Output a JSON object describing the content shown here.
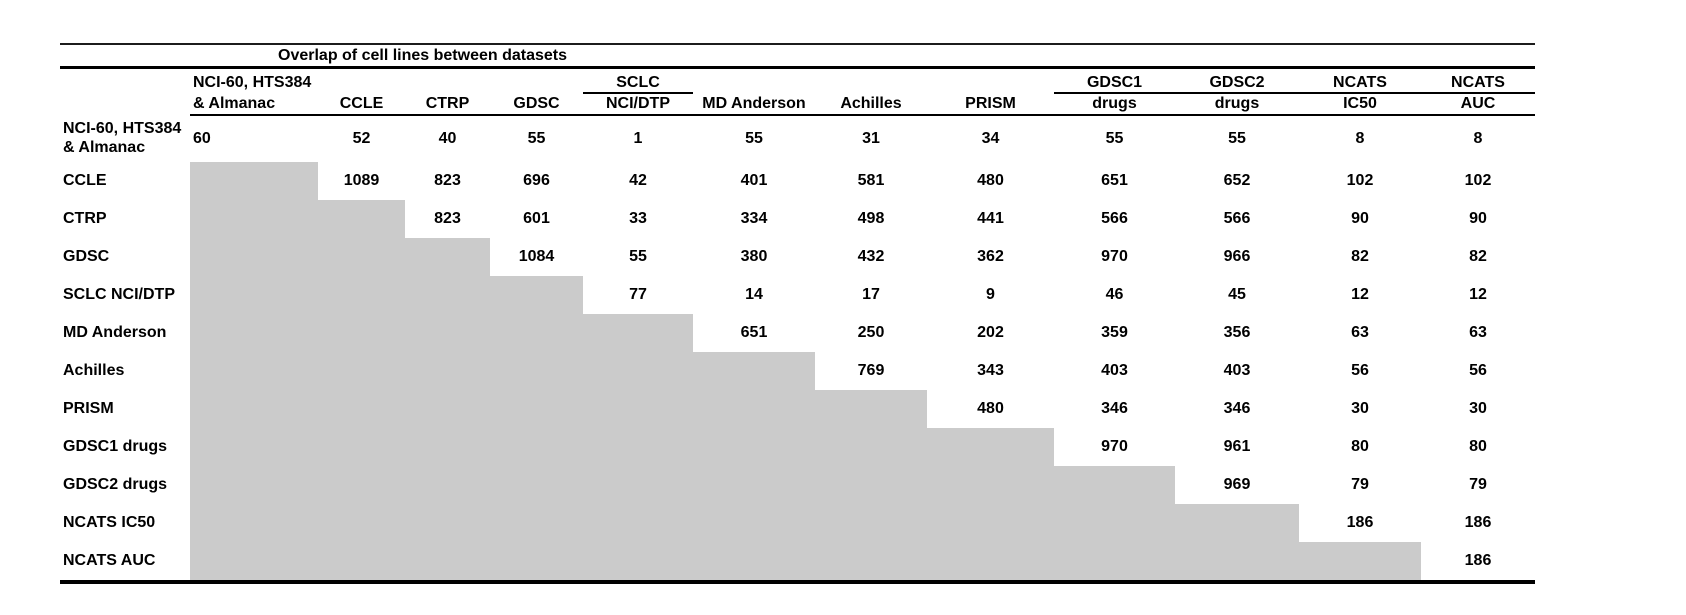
{
  "colors": {
    "background": "#ffffff",
    "shaded_cell": "#cbcbcb",
    "rule": "#000000",
    "text": "#000000"
  },
  "chart_data": {
    "type": "table",
    "title": "Overlap of cell lines between datasets",
    "description_of_shading": "strict lower-triangle cells are shaded gray with no values",
    "header_row_1": [
      "NCI-60, HTS384",
      "",
      "",
      "",
      "SCLC",
      "",
      "",
      "",
      "GDSC1",
      "GDSC2",
      "NCATS",
      "NCATS"
    ],
    "header_row_2": [
      "& Almanac",
      "CCLE",
      "CTRP",
      "GDSC",
      "NCI/DTP",
      "MD Anderson",
      "Achilles",
      "PRISM",
      "drugs",
      "drugs",
      "IC50",
      "AUC"
    ],
    "header_underline_groups": [
      [
        5,
        5
      ],
      [
        9,
        12
      ]
    ],
    "row_labels": [
      "NCI-60, HTS384 & Almanac",
      "CCLE",
      "CTRP",
      "GDSC",
      "SCLC NCI/DTP",
      "MD Anderson",
      "Achilles",
      "PRISM",
      "GDSC1 drugs",
      "GDSC2 drugs",
      "NCATS IC50",
      "NCATS AUC"
    ],
    "matrix": [
      [
        60,
        52,
        40,
        55,
        1,
        55,
        31,
        34,
        55,
        55,
        8,
        8
      ],
      [
        null,
        1089,
        823,
        696,
        42,
        401,
        581,
        480,
        651,
        652,
        102,
        102
      ],
      [
        null,
        null,
        823,
        601,
        33,
        334,
        498,
        441,
        566,
        566,
        90,
        90
      ],
      [
        null,
        null,
        null,
        1084,
        55,
        380,
        432,
        362,
        970,
        966,
        82,
        82
      ],
      [
        null,
        null,
        null,
        null,
        77,
        14,
        17,
        9,
        46,
        45,
        12,
        12
      ],
      [
        null,
        null,
        null,
        null,
        null,
        651,
        250,
        202,
        359,
        356,
        63,
        63
      ],
      [
        null,
        null,
        null,
        null,
        null,
        null,
        769,
        343,
        403,
        403,
        56,
        56
      ],
      [
        null,
        null,
        null,
        null,
        null,
        null,
        null,
        480,
        346,
        346,
        30,
        30
      ],
      [
        null,
        null,
        null,
        null,
        null,
        null,
        null,
        null,
        970,
        961,
        80,
        80
      ],
      [
        null,
        null,
        null,
        null,
        null,
        null,
        null,
        null,
        null,
        969,
        79,
        79
      ],
      [
        null,
        null,
        null,
        null,
        null,
        null,
        null,
        null,
        null,
        null,
        186,
        186
      ],
      [
        null,
        null,
        null,
        null,
        null,
        null,
        null,
        null,
        null,
        null,
        null,
        186
      ]
    ],
    "layout": {
      "legend": "none",
      "grid": "horizontal rules only (booktabs style)",
      "first_data_column_alignment": "left",
      "other_columns_alignment": "center",
      "row_label_alignment": "left"
    }
  }
}
